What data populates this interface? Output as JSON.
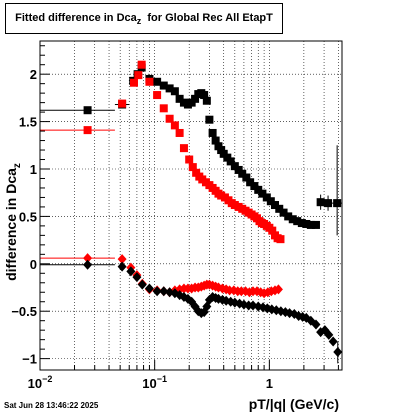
{
  "chart_data": {
    "type": "scatter",
    "title": "Fitted difference in Dca",
    "title_subscript": "z",
    "title_suffix": "  for Global Rec All EtapT",
    "xlabel": "pT/|q| (GeV/c)",
    "ylabel": "difference in Dca",
    "ylabel_subscript": "z",
    "x_scale": "log",
    "xlim": [
      0.01,
      4.3
    ],
    "ylim": [
      -1.12,
      2.35
    ],
    "grid": true,
    "x_ticks": [
      {
        "value": 0.01,
        "label": "10",
        "sup": "−2"
      },
      {
        "value": 0.1,
        "label": "10",
        "sup": "−1"
      },
      {
        "value": 1,
        "label": "1",
        "sup": ""
      }
    ],
    "y_ticks": [
      {
        "value": -1,
        "label": "−1"
      },
      {
        "value": -0.5,
        "label": "−0.5"
      },
      {
        "value": 0,
        "label": "0"
      },
      {
        "value": 0.5,
        "label": "0.5"
      },
      {
        "value": 1,
        "label": "1"
      },
      {
        "value": 1.5,
        "label": "1.5"
      },
      {
        "value": 2,
        "label": "2"
      }
    ],
    "series": [
      {
        "color": "#000000",
        "marker": "square",
        "points": [
          {
            "x": 0.026,
            "y": 1.62,
            "xlo": 0.01,
            "xhi": 0.045
          },
          {
            "x": 0.052,
            "y": 1.68,
            "xlo": 0.045,
            "xhi": 0.06
          },
          {
            "x": 0.065,
            "y": 1.93
          },
          {
            "x": 0.071,
            "y": 2.0
          },
          {
            "x": 0.077,
            "y": 2.07
          },
          {
            "x": 0.09,
            "y": 1.95
          },
          {
            "x": 0.105,
            "y": 1.92
          },
          {
            "x": 0.12,
            "y": 1.88
          },
          {
            "x": 0.135,
            "y": 1.85
          },
          {
            "x": 0.15,
            "y": 1.82
          },
          {
            "x": 0.165,
            "y": 1.74
          },
          {
            "x": 0.18,
            "y": 1.7
          },
          {
            "x": 0.195,
            "y": 1.68
          },
          {
            "x": 0.21,
            "y": 1.7
          },
          {
            "x": 0.225,
            "y": 1.74
          },
          {
            "x": 0.24,
            "y": 1.79
          },
          {
            "x": 0.255,
            "y": 1.8
          },
          {
            "x": 0.27,
            "y": 1.78
          },
          {
            "x": 0.285,
            "y": 1.72
          },
          {
            "x": 0.3,
            "y": 1.52
          },
          {
            "x": 0.32,
            "y": 1.38
          },
          {
            "x": 0.34,
            "y": 1.3
          },
          {
            "x": 0.36,
            "y": 1.24
          },
          {
            "x": 0.38,
            "y": 1.2
          },
          {
            "x": 0.4,
            "y": 1.16
          },
          {
            "x": 0.43,
            "y": 1.12
          },
          {
            "x": 0.46,
            "y": 1.08
          },
          {
            "x": 0.5,
            "y": 1.03
          },
          {
            "x": 0.54,
            "y": 0.99
          },
          {
            "x": 0.58,
            "y": 0.95
          },
          {
            "x": 0.63,
            "y": 0.91
          },
          {
            "x": 0.68,
            "y": 0.86
          },
          {
            "x": 0.74,
            "y": 0.82
          },
          {
            "x": 0.8,
            "y": 0.78
          },
          {
            "x": 0.87,
            "y": 0.74
          },
          {
            "x": 0.95,
            "y": 0.7
          },
          {
            "x": 1.03,
            "y": 0.66
          },
          {
            "x": 1.12,
            "y": 0.62
          },
          {
            "x": 1.22,
            "y": 0.58
          },
          {
            "x": 1.33,
            "y": 0.54
          },
          {
            "x": 1.46,
            "y": 0.5
          },
          {
            "x": 1.6,
            "y": 0.47
          },
          {
            "x": 1.75,
            "y": 0.45
          },
          {
            "x": 1.92,
            "y": 0.43
          },
          {
            "x": 2.1,
            "y": 0.42
          },
          {
            "x": 2.3,
            "y": 0.41
          },
          {
            "x": 2.55,
            "y": 0.41
          },
          {
            "x": 2.8,
            "y": 0.65,
            "xlo": 2.65,
            "xhi": 3.0,
            "ylo": 0.57,
            "yhi": 0.73
          },
          {
            "x": 3.25,
            "y": 0.64,
            "xlo": 3.0,
            "xhi": 3.5,
            "ylo": 0.56,
            "yhi": 0.72
          },
          {
            "x": 3.9,
            "y": 0.64,
            "xlo": 3.5,
            "xhi": 4.3,
            "ylo": 0.3,
            "yhi": 1.25
          }
        ]
      },
      {
        "color": "#ff0000",
        "marker": "square",
        "points": [
          {
            "x": 0.026,
            "y": 1.41,
            "xlo": 0.01,
            "xhi": 0.045
          },
          {
            "x": 0.052,
            "y": 1.69
          },
          {
            "x": 0.066,
            "y": 1.91
          },
          {
            "x": 0.072,
            "y": 1.99
          },
          {
            "x": 0.077,
            "y": 2.1
          },
          {
            "x": 0.09,
            "y": 1.92
          },
          {
            "x": 0.105,
            "y": 1.78
          },
          {
            "x": 0.12,
            "y": 1.64
          },
          {
            "x": 0.135,
            "y": 1.53
          },
          {
            "x": 0.15,
            "y": 1.46
          },
          {
            "x": 0.165,
            "y": 1.38
          },
          {
            "x": 0.18,
            "y": 1.22
          },
          {
            "x": 0.2,
            "y": 1.1
          },
          {
            "x": 0.215,
            "y": 1.02
          },
          {
            "x": 0.23,
            "y": 0.96
          },
          {
            "x": 0.245,
            "y": 0.92
          },
          {
            "x": 0.26,
            "y": 0.89
          },
          {
            "x": 0.28,
            "y": 0.86
          },
          {
            "x": 0.3,
            "y": 0.83
          },
          {
            "x": 0.32,
            "y": 0.8
          },
          {
            "x": 0.34,
            "y": 0.77
          },
          {
            "x": 0.36,
            "y": 0.74
          },
          {
            "x": 0.38,
            "y": 0.72
          },
          {
            "x": 0.41,
            "y": 0.7
          },
          {
            "x": 0.44,
            "y": 0.67
          },
          {
            "x": 0.47,
            "y": 0.64
          },
          {
            "x": 0.5,
            "y": 0.62
          },
          {
            "x": 0.54,
            "y": 0.6
          },
          {
            "x": 0.58,
            "y": 0.58
          },
          {
            "x": 0.62,
            "y": 0.56
          },
          {
            "x": 0.66,
            "y": 0.54
          },
          {
            "x": 0.7,
            "y": 0.52
          },
          {
            "x": 0.74,
            "y": 0.5
          },
          {
            "x": 0.78,
            "y": 0.48
          },
          {
            "x": 0.82,
            "y": 0.45
          },
          {
            "x": 0.86,
            "y": 0.43
          },
          {
            "x": 0.9,
            "y": 0.42
          },
          {
            "x": 0.95,
            "y": 0.4
          },
          {
            "x": 1.0,
            "y": 0.38
          },
          {
            "x": 1.06,
            "y": 0.35
          },
          {
            "x": 1.12,
            "y": 0.3
          },
          {
            "x": 1.18,
            "y": 0.27
          },
          {
            "x": 1.25,
            "y": 0.26
          }
        ]
      },
      {
        "color": "#ff0000",
        "marker": "diamond",
        "points": [
          {
            "x": 0.026,
            "y": 0.06,
            "xlo": 0.01,
            "xhi": 0.045
          },
          {
            "x": 0.052,
            "y": 0.05
          },
          {
            "x": 0.062,
            "y": -0.04
          },
          {
            "x": 0.07,
            "y": -0.12
          },
          {
            "x": 0.078,
            "y": -0.21
          },
          {
            "x": 0.09,
            "y": -0.27
          },
          {
            "x": 0.105,
            "y": -0.28
          },
          {
            "x": 0.12,
            "y": -0.29
          },
          {
            "x": 0.135,
            "y": -0.3
          },
          {
            "x": 0.15,
            "y": -0.28
          },
          {
            "x": 0.165,
            "y": -0.27
          },
          {
            "x": 0.18,
            "y": -0.26
          },
          {
            "x": 0.195,
            "y": -0.26
          },
          {
            "x": 0.21,
            "y": -0.26
          },
          {
            "x": 0.225,
            "y": -0.25
          },
          {
            "x": 0.24,
            "y": -0.25
          },
          {
            "x": 0.255,
            "y": -0.24
          },
          {
            "x": 0.27,
            "y": -0.23
          },
          {
            "x": 0.285,
            "y": -0.22
          },
          {
            "x": 0.3,
            "y": -0.22
          },
          {
            "x": 0.32,
            "y": -0.23
          },
          {
            "x": 0.34,
            "y": -0.24
          },
          {
            "x": 0.36,
            "y": -0.25
          },
          {
            "x": 0.39,
            "y": -0.26
          },
          {
            "x": 0.42,
            "y": -0.27
          },
          {
            "x": 0.45,
            "y": -0.28
          },
          {
            "x": 0.49,
            "y": -0.28
          },
          {
            "x": 0.53,
            "y": -0.29
          },
          {
            "x": 0.57,
            "y": -0.29
          },
          {
            "x": 0.62,
            "y": -0.29
          },
          {
            "x": 0.67,
            "y": -0.3
          },
          {
            "x": 0.72,
            "y": -0.29
          },
          {
            "x": 0.78,
            "y": -0.29
          },
          {
            "x": 0.84,
            "y": -0.3
          },
          {
            "x": 0.9,
            "y": -0.31
          },
          {
            "x": 0.97,
            "y": -0.3
          },
          {
            "x": 1.04,
            "y": -0.29
          },
          {
            "x": 1.12,
            "y": -0.28
          },
          {
            "x": 1.2,
            "y": -0.27
          }
        ]
      },
      {
        "color": "#000000",
        "marker": "diamond",
        "points": [
          {
            "x": 0.026,
            "y": -0.01,
            "xlo": 0.01,
            "xhi": 0.045
          },
          {
            "x": 0.052,
            "y": -0.03
          },
          {
            "x": 0.062,
            "y": -0.08
          },
          {
            "x": 0.07,
            "y": -0.14
          },
          {
            "x": 0.078,
            "y": -0.22
          },
          {
            "x": 0.09,
            "y": -0.26
          },
          {
            "x": 0.105,
            "y": -0.29
          },
          {
            "x": 0.12,
            "y": -0.29
          },
          {
            "x": 0.135,
            "y": -0.3
          },
          {
            "x": 0.15,
            "y": -0.31
          },
          {
            "x": 0.165,
            "y": -0.33
          },
          {
            "x": 0.18,
            "y": -0.35
          },
          {
            "x": 0.195,
            "y": -0.37
          },
          {
            "x": 0.21,
            "y": -0.4
          },
          {
            "x": 0.225,
            "y": -0.45
          },
          {
            "x": 0.24,
            "y": -0.5
          },
          {
            "x": 0.255,
            "y": -0.52
          },
          {
            "x": 0.27,
            "y": -0.51
          },
          {
            "x": 0.285,
            "y": -0.45
          },
          {
            "x": 0.3,
            "y": -0.38
          },
          {
            "x": 0.32,
            "y": -0.35
          },
          {
            "x": 0.34,
            "y": -0.36
          },
          {
            "x": 0.36,
            "y": -0.37
          },
          {
            "x": 0.39,
            "y": -0.38
          },
          {
            "x": 0.42,
            "y": -0.39
          },
          {
            "x": 0.46,
            "y": -0.4
          },
          {
            "x": 0.5,
            "y": -0.41
          },
          {
            "x": 0.55,
            "y": -0.42
          },
          {
            "x": 0.6,
            "y": -0.43
          },
          {
            "x": 0.66,
            "y": -0.44
          },
          {
            "x": 0.72,
            "y": -0.44
          },
          {
            "x": 0.8,
            "y": -0.45
          },
          {
            "x": 0.88,
            "y": -0.46
          },
          {
            "x": 0.96,
            "y": -0.47
          },
          {
            "x": 1.05,
            "y": -0.48
          },
          {
            "x": 1.15,
            "y": -0.49
          },
          {
            "x": 1.26,
            "y": -0.5
          },
          {
            "x": 1.38,
            "y": -0.51
          },
          {
            "x": 1.5,
            "y": -0.52
          },
          {
            "x": 1.65,
            "y": -0.53
          },
          {
            "x": 1.8,
            "y": -0.55
          },
          {
            "x": 1.95,
            "y": -0.56
          },
          {
            "x": 2.1,
            "y": -0.57
          },
          {
            "x": 2.3,
            "y": -0.6
          },
          {
            "x": 2.55,
            "y": -0.64
          },
          {
            "x": 2.8,
            "y": -0.72
          },
          {
            "x": 3.05,
            "y": -0.7
          },
          {
            "x": 3.3,
            "y": -0.75
          },
          {
            "x": 3.6,
            "y": -0.82
          },
          {
            "x": 3.95,
            "y": -0.93,
            "ylo": -1.05,
            "yhi": -0.82
          }
        ]
      }
    ]
  },
  "footer": {
    "timestamp": "Sat Jun 28 13:46:22 2025"
  }
}
